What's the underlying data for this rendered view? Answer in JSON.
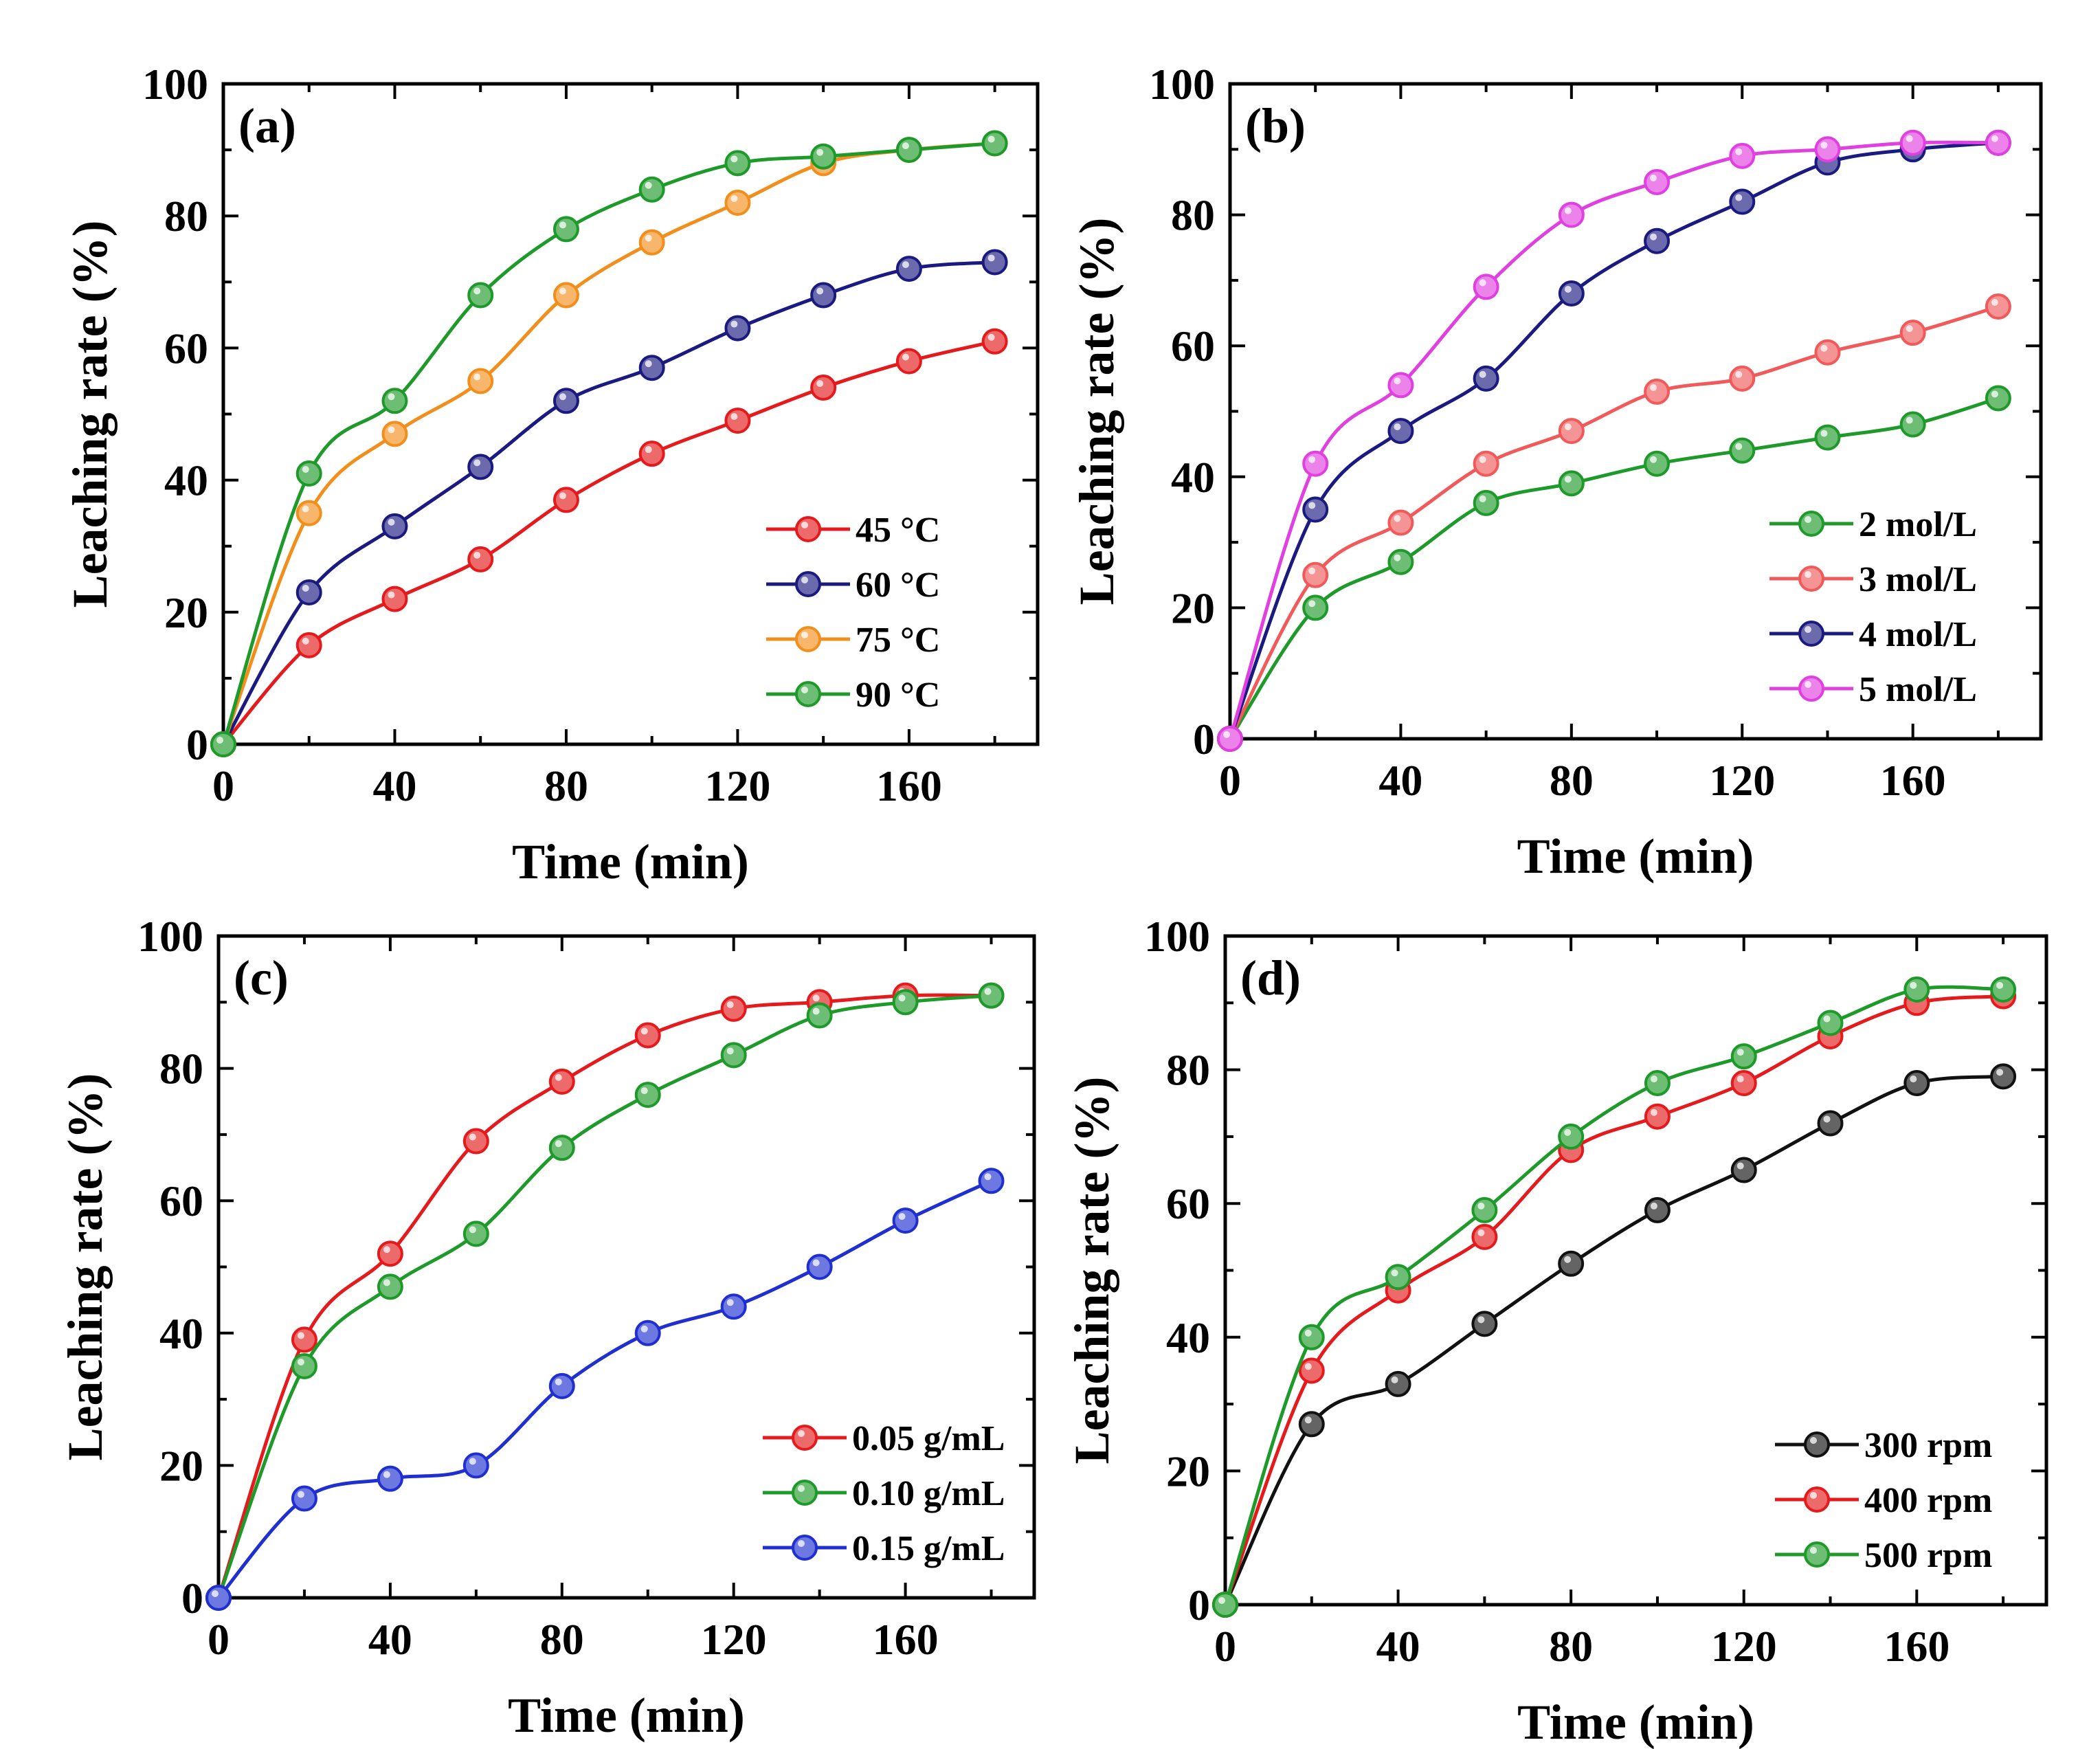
{
  "chart_data": [
    {
      "type": "line",
      "panel_label": "(a)",
      "xlabel": "Time (min)",
      "ylabel": "Leaching rate (%)",
      "xlim": [
        0,
        190
      ],
      "ylim": [
        0,
        100
      ],
      "xticks": [
        "0",
        "40",
        "80",
        "120",
        "160"
      ],
      "yticks": [
        "0",
        "20",
        "40",
        "60",
        "80",
        "100"
      ],
      "legend_position": "bottom-right",
      "series": [
        {
          "name": "45 °C",
          "color": "#e41a1c",
          "x": [
            0,
            20,
            40,
            60,
            80,
            100,
            120,
            140,
            160,
            180
          ],
          "values": [
            0,
            15,
            22,
            28,
            37,
            44,
            49,
            54,
            58,
            61
          ]
        },
        {
          "name": "60 °C",
          "color": "#1a1a80",
          "x": [
            0,
            20,
            40,
            60,
            80,
            100,
            120,
            140,
            160,
            180
          ],
          "values": [
            0,
            23,
            33,
            42,
            52,
            57,
            63,
            68,
            72,
            73
          ]
        },
        {
          "name": "75 °C",
          "color": "#f28e1c",
          "x": [
            0,
            20,
            40,
            60,
            80,
            100,
            120,
            140,
            160,
            180
          ],
          "values": [
            0,
            35,
            47,
            55,
            68,
            76,
            82,
            88,
            90,
            91
          ]
        },
        {
          "name": "90 °C",
          "color": "#1e9a2a",
          "x": [
            0,
            20,
            40,
            60,
            80,
            100,
            120,
            140,
            160,
            180
          ],
          "values": [
            0,
            41,
            52,
            68,
            78,
            84,
            88,
            89,
            90,
            91
          ]
        }
      ]
    },
    {
      "type": "line",
      "panel_label": "(b)",
      "xlabel": "Time (min)",
      "ylabel": "Leaching rate (%)",
      "xlim": [
        0,
        190
      ],
      "ylim": [
        0,
        100
      ],
      "xticks": [
        "0",
        "40",
        "80",
        "120",
        "160"
      ],
      "yticks": [
        "0",
        "20",
        "40",
        "60",
        "80",
        "100"
      ],
      "legend_position": "bottom-right",
      "series": [
        {
          "name": "2 mol/L",
          "color": "#1e9a2a",
          "x": [
            0,
            20,
            40,
            60,
            80,
            100,
            120,
            140,
            160,
            180
          ],
          "values": [
            0,
            20,
            27,
            36,
            39,
            42,
            44,
            46,
            48,
            52
          ]
        },
        {
          "name": "3 mol/L",
          "color": "#f05a5a",
          "x": [
            0,
            20,
            40,
            60,
            80,
            100,
            120,
            140,
            160,
            180
          ],
          "values": [
            0,
            25,
            33,
            42,
            47,
            53,
            55,
            59,
            62,
            66
          ]
        },
        {
          "name": "4 mol/L",
          "color": "#1a1a80",
          "x": [
            0,
            20,
            40,
            60,
            80,
            100,
            120,
            140,
            160,
            180
          ],
          "values": [
            0,
            35,
            47,
            55,
            68,
            76,
            82,
            88,
            90,
            91
          ]
        },
        {
          "name": "5 mol/L",
          "color": "#e040e0",
          "x": [
            0,
            20,
            40,
            60,
            80,
            100,
            120,
            140,
            160,
            180
          ],
          "values": [
            0,
            42,
            54,
            69,
            80,
            85,
            89,
            90,
            91,
            91
          ]
        }
      ]
    },
    {
      "type": "line",
      "panel_label": "(c)",
      "xlabel": "Time (min)",
      "ylabel": "Leaching rate (%)",
      "xlim": [
        0,
        190
      ],
      "ylim": [
        0,
        100
      ],
      "xticks": [
        "0",
        "40",
        "80",
        "120",
        "160"
      ],
      "yticks": [
        "0",
        "20",
        "40",
        "60",
        "80",
        "100"
      ],
      "legend_position": "bottom-right",
      "series": [
        {
          "name": "0.05 g/mL",
          "color": "#e41a1c",
          "x": [
            0,
            20,
            40,
            60,
            80,
            100,
            120,
            140,
            160,
            180
          ],
          "values": [
            0,
            39,
            52,
            69,
            78,
            85,
            89,
            90,
            91,
            91
          ]
        },
        {
          "name": "0.10 g/mL",
          "color": "#1e9a2a",
          "x": [
            0,
            20,
            40,
            60,
            80,
            100,
            120,
            140,
            160,
            180
          ],
          "values": [
            0,
            35,
            47,
            55,
            68,
            76,
            82,
            88,
            90,
            91
          ]
        },
        {
          "name": "0.15 g/mL",
          "color": "#1f2fd0",
          "x": [
            0,
            20,
            40,
            60,
            80,
            100,
            120,
            140,
            160,
            180
          ],
          "values": [
            0,
            15,
            18,
            20,
            32,
            40,
            44,
            50,
            57,
            63
          ]
        }
      ]
    },
    {
      "type": "line",
      "panel_label": "(d)",
      "xlabel": "Time (min)",
      "ylabel": "Leaching rate (%)",
      "xlim": [
        0,
        190
      ],
      "ylim": [
        0,
        100
      ],
      "xticks": [
        "0",
        "40",
        "80",
        "120",
        "160"
      ],
      "yticks": [
        "0",
        "20",
        "40",
        "60",
        "80",
        "100"
      ],
      "legend_position": "bottom-right",
      "series": [
        {
          "name": "300 rpm",
          "color": "#111111",
          "x": [
            0,
            20,
            40,
            60,
            80,
            100,
            120,
            140,
            160,
            180
          ],
          "values": [
            0,
            27,
            33,
            42,
            51,
            59,
            65,
            72,
            78,
            79
          ]
        },
        {
          "name": "400 rpm",
          "color": "#e41a1c",
          "x": [
            0,
            20,
            40,
            60,
            80,
            100,
            120,
            140,
            160,
            180
          ],
          "values": [
            0,
            35,
            47,
            55,
            68,
            73,
            78,
            85,
            90,
            91
          ]
        },
        {
          "name": "500 rpm",
          "color": "#1e9a2a",
          "x": [
            0,
            20,
            40,
            60,
            80,
            100,
            120,
            140,
            160,
            180
          ],
          "values": [
            0,
            40,
            49,
            59,
            70,
            78,
            82,
            87,
            92,
            92
          ]
        }
      ]
    }
  ]
}
